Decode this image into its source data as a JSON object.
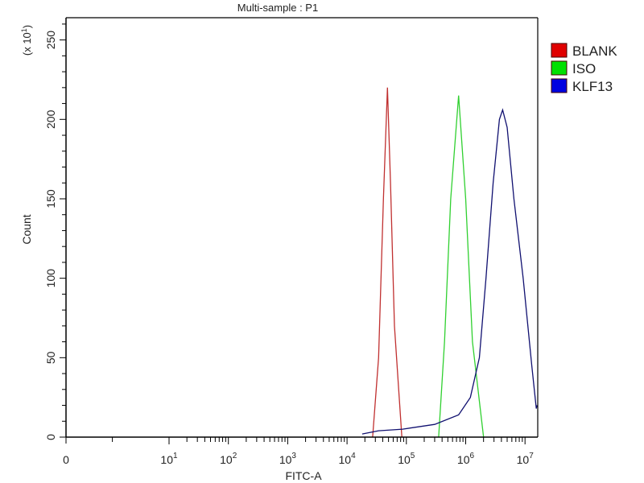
{
  "chart_data": {
    "type": "line",
    "title": "Multi-sample : P1",
    "xlabel": "FITC-A",
    "ylabel": "Count",
    "y_multiplier_label": "(x 10",
    "y_multiplier_exp": "1",
    "x_scale": "log",
    "xlim": [
      0,
      16000000
    ],
    "ylim": [
      0,
      264
    ],
    "x_ticks": [
      {
        "base": "0",
        "exp": ""
      },
      {
        "base": "10",
        "exp": "1"
      },
      {
        "base": "10",
        "exp": "2"
      },
      {
        "base": "10",
        "exp": "3"
      },
      {
        "base": "10",
        "exp": "4"
      },
      {
        "base": "10",
        "exp": "5"
      },
      {
        "base": "10",
        "exp": "6"
      },
      {
        "base": "10",
        "exp": "7"
      }
    ],
    "y_ticks": [
      "0",
      "50",
      "100",
      "150",
      "200",
      "250"
    ],
    "grid": false,
    "legend_position": "right",
    "series": [
      {
        "name": "BLANK",
        "color": "#e00000",
        "line_color": "#c03030",
        "points": [
          [
            27000,
            0
          ],
          [
            34000,
            50
          ],
          [
            41000,
            150
          ],
          [
            48000,
            220
          ],
          [
            54000,
            160
          ],
          [
            63000,
            70
          ],
          [
            84000,
            0
          ]
        ]
      },
      {
        "name": "ISO",
        "color": "#00e000",
        "line_color": "#30d030",
        "points": [
          [
            350000,
            0
          ],
          [
            440000,
            60
          ],
          [
            560000,
            150
          ],
          [
            760000,
            215
          ],
          [
            1000000,
            150
          ],
          [
            1300000,
            60
          ],
          [
            2000000,
            0
          ]
        ]
      },
      {
        "name": "KLF13",
        "color": "#0000e0",
        "line_color": "#101070",
        "points": [
          [
            18000,
            2
          ],
          [
            34000,
            4
          ],
          [
            87000,
            5
          ],
          [
            300000,
            8
          ],
          [
            760000,
            14
          ],
          [
            1200000,
            25
          ],
          [
            1700000,
            50
          ],
          [
            2200000,
            100
          ],
          [
            2900000,
            160
          ],
          [
            3700000,
            200
          ],
          [
            4200000,
            206
          ],
          [
            5000000,
            195
          ],
          [
            6500000,
            150
          ],
          [
            9300000,
            100
          ],
          [
            13000000,
            45
          ],
          [
            15500000,
            18
          ],
          [
            16000000,
            20
          ]
        ]
      }
    ]
  }
}
